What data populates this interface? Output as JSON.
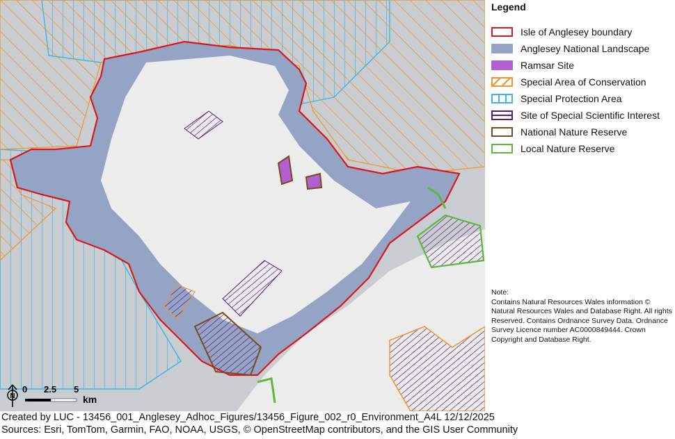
{
  "legend": {
    "title": "Legend",
    "items": [
      {
        "label": "Isle of Anglesey boundary",
        "color": "#d7191c",
        "style": "outline"
      },
      {
        "label": "Anglesey National Landscape",
        "color": "#95a3c4",
        "style": "fill"
      },
      {
        "label": "Ramsar Site",
        "color": "#b060d0",
        "style": "fill"
      },
      {
        "label": "Special Area of Conservation",
        "color": "#f0952a",
        "style": "diagonal-hatch"
      },
      {
        "label": "Special Protection Area",
        "color": "#3bb4e8",
        "style": "vertical-hatch"
      },
      {
        "label": "Site of Special Scientific Interest",
        "color": "#5a1a78",
        "style": "horizontal-hatch"
      },
      {
        "label": "National Nature Reserve",
        "color": "#7a4a1a",
        "style": "outline"
      },
      {
        "label": "Local Nature Reserve",
        "color": "#5cb83a",
        "style": "outline"
      }
    ]
  },
  "note": {
    "heading": "Note:",
    "text": "Contains Natural Resources Wales information © Natural Resources Wales and Database Right. All rights Reserved. Contains Ordnance Survey Data. Ordnance Survey Licence number AC0000849444. Crown Copyright and Database Right."
  },
  "scale_bar": {
    "ticks": [
      "0",
      "2.5",
      "5"
    ],
    "unit": "km"
  },
  "north_arrow": {
    "icon": "north-arrow-icon",
    "label": "N"
  },
  "credits": {
    "created_by": "Created by LUC - 13456_001_Anglesey_Adhoc_Figures/13456_Figure_002_r0_Environment_A4L 12/12/2025",
    "sources": "Sources: Esri, TomTom, Garmin, FAO, NOAA, USGS, © OpenStreetMap contributors, and the GIS User Community"
  },
  "colors": {
    "sea": "#c9cdd1",
    "land": "#ececec"
  }
}
